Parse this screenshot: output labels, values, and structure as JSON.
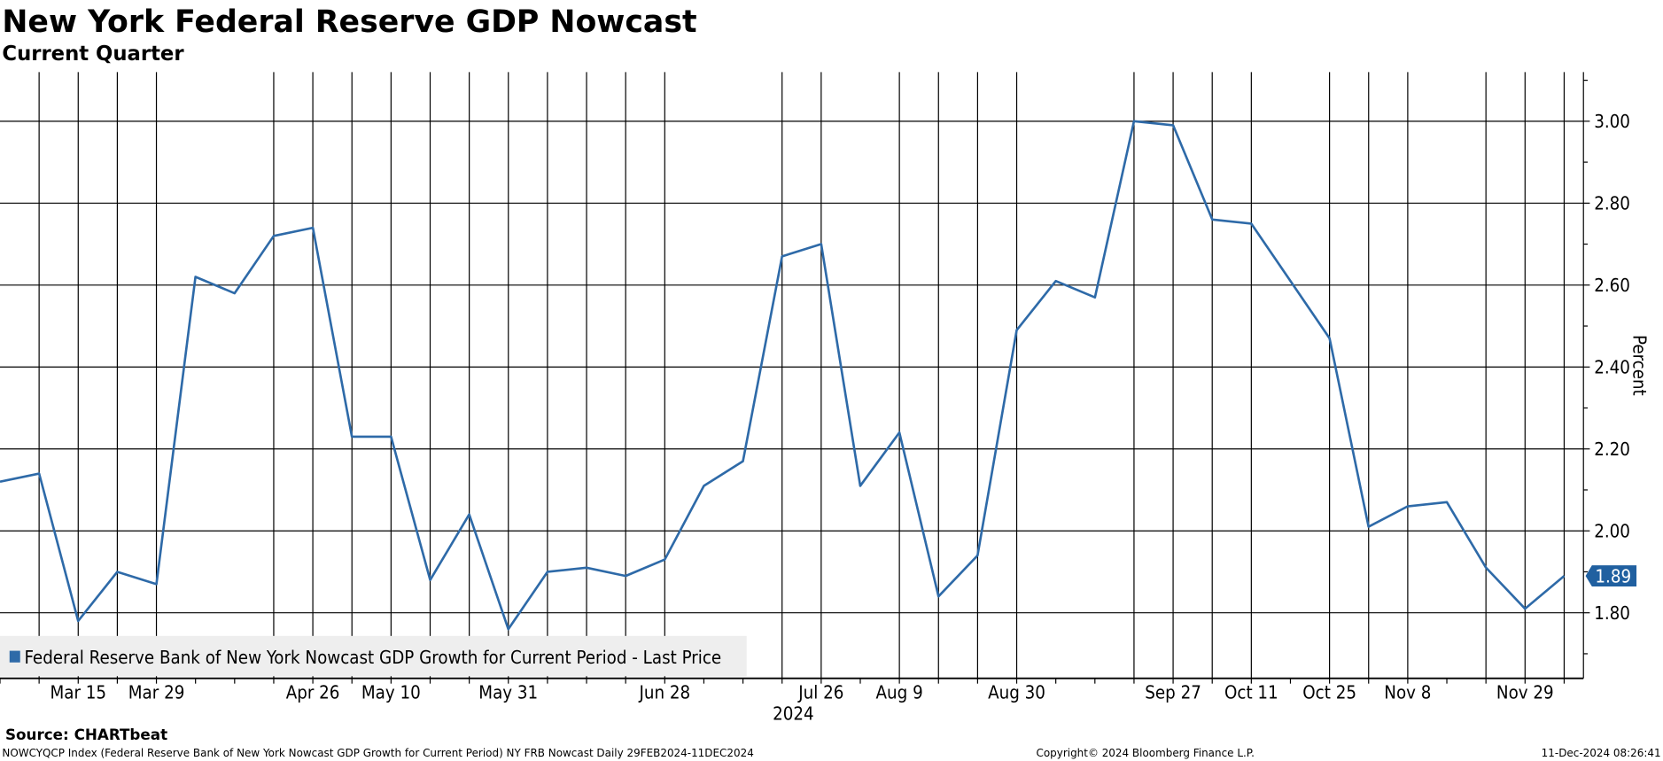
{
  "header": {
    "title": "New York Federal Reserve GDP Nowcast",
    "subtitle": "Current Quarter"
  },
  "footer": {
    "source": "Source: CHARTbeat",
    "description": "NOWCYQCP Index (Federal Reserve Bank of New York Nowcast GDP Growth for Current Period) NY FRB Nowcast  Daily 29FEB2024-11DEC2024",
    "copyright": "Copyright© 2024 Bloomberg Finance L.P.",
    "timestamp": "11-Dec-2024 08:26:41"
  },
  "chart_data": {
    "type": "line",
    "title": "New York Federal Reserve GDP Nowcast",
    "subtitle": "Current Quarter",
    "ylabel": "Percent",
    "ylim": [
      1.64,
      3.12
    ],
    "yticks": [
      "1.80",
      "2.00",
      "2.20",
      "2.40",
      "2.60",
      "2.80",
      "3.00"
    ],
    "grid": true,
    "legend_position": "bottom-left",
    "line_color": "#2e6aa8",
    "last_value_label": "1.89",
    "x_tick_labels": [
      {
        "label": "Mar 15",
        "date": "2024-03-15"
      },
      {
        "label": "Mar 29",
        "date": "2024-03-29"
      },
      {
        "label": "Apr 26",
        "date": "2024-04-26"
      },
      {
        "label": "May 10",
        "date": "2024-05-10"
      },
      {
        "label": "May 31",
        "date": "2024-05-31"
      },
      {
        "label": "Jun 28",
        "date": "2024-06-28"
      },
      {
        "label": "Jul 26",
        "date": "2024-07-26"
      },
      {
        "label": "Aug 9",
        "date": "2024-08-09"
      },
      {
        "label": "Aug 30",
        "date": "2024-08-30"
      },
      {
        "label": "Sep 27",
        "date": "2024-09-27"
      },
      {
        "label": "Oct 11",
        "date": "2024-10-11"
      },
      {
        "label": "Oct 25",
        "date": "2024-10-25"
      },
      {
        "label": "Nov 8",
        "date": "2024-11-08"
      },
      {
        "label": "Nov 29",
        "date": "2024-11-29"
      }
    ],
    "year_label": "2024",
    "series": [
      {
        "name": "Federal Reserve Bank of New York Nowcast GDP Growth for Current Period - Last Price",
        "x": [
          "2024-03-01",
          "2024-03-08",
          "2024-03-15",
          "2024-03-22",
          "2024-03-29",
          "2024-04-05",
          "2024-04-12",
          "2024-04-19",
          "2024-04-26",
          "2024-05-03",
          "2024-05-10",
          "2024-05-17",
          "2024-05-24",
          "2024-05-31",
          "2024-06-07",
          "2024-06-14",
          "2024-06-21",
          "2024-06-28",
          "2024-07-05",
          "2024-07-12",
          "2024-07-19",
          "2024-07-26",
          "2024-08-02",
          "2024-08-09",
          "2024-08-16",
          "2024-08-23",
          "2024-08-30",
          "2024-09-06",
          "2024-09-13",
          "2024-09-20",
          "2024-09-27",
          "2024-10-04",
          "2024-10-11",
          "2024-10-18",
          "2024-10-25",
          "2024-11-01",
          "2024-11-08",
          "2024-11-15",
          "2024-11-22",
          "2024-11-29",
          "2024-12-06"
        ],
        "y": [
          2.12,
          2.14,
          1.78,
          1.9,
          1.87,
          2.62,
          2.58,
          2.72,
          2.74,
          2.23,
          2.23,
          1.88,
          2.04,
          1.76,
          1.9,
          1.91,
          1.89,
          1.93,
          2.11,
          2.17,
          2.67,
          2.7,
          2.11,
          2.24,
          1.84,
          1.94,
          2.49,
          2.61,
          2.57,
          3.0,
          2.99,
          2.76,
          2.75,
          2.61,
          2.47,
          2.01,
          2.06,
          2.07,
          1.91,
          1.81,
          1.89
        ]
      }
    ]
  }
}
